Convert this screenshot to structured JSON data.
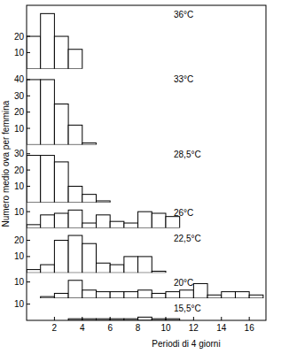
{
  "chart_data": [
    {
      "type": "histogram",
      "title": "36°C",
      "ylabel": "Numero medio ova per femmina",
      "color": "#ffffff",
      "bins": [
        0,
        1,
        2,
        3,
        4
      ],
      "values": [
        20,
        34,
        20,
        12
      ],
      "xlim": [
        0,
        17.2
      ],
      "ylim": [
        0,
        38
      ],
      "yticks": [
        10,
        20
      ]
    },
    {
      "type": "histogram",
      "title": "33°C",
      "color": "#ffffff",
      "bins": [
        0,
        1,
        2,
        3,
        4,
        5
      ],
      "values": [
        40,
        40,
        25,
        12,
        1
      ],
      "xlim": [
        0,
        17.2
      ],
      "ylim": [
        0,
        45
      ],
      "yticks": [
        10,
        20,
        30,
        40
      ]
    },
    {
      "type": "histogram",
      "title": "28,5°C",
      "color": "#ffffff",
      "bins": [
        0,
        1,
        2,
        3,
        4,
        5,
        6
      ],
      "values": [
        29,
        29,
        25,
        10,
        5,
        1
      ],
      "xlim": [
        0,
        17.2
      ],
      "ylim": [
        0,
        34
      ],
      "yticks": [
        10,
        20,
        30
      ]
    },
    {
      "type": "histogram",
      "title": "26°C",
      "color": "#ffffff",
      "bins": [
        0,
        1,
        2,
        3,
        4,
        5,
        6,
        7,
        8,
        9,
        10,
        11
      ],
      "values": [
        2,
        8,
        9,
        11,
        3,
        8,
        4,
        3,
        10,
        9,
        7
      ],
      "xlim": [
        0,
        17.2
      ],
      "ylim": [
        0,
        14
      ],
      "yticks": [
        10
      ]
    },
    {
      "type": "histogram",
      "title": "22,5°C",
      "color": "#ffffff",
      "bins": [
        0,
        1,
        2,
        3,
        4,
        5,
        6,
        7,
        8,
        9,
        10
      ],
      "values": [
        2,
        5,
        20,
        23,
        18,
        6,
        5,
        10,
        10,
        1
      ],
      "xlim": [
        0,
        17.2
      ],
      "ylim": [
        0,
        26
      ],
      "yticks": [
        10,
        20
      ]
    },
    {
      "type": "histogram",
      "title": "20°C",
      "color": "#ffffff",
      "bins": [
        1,
        2,
        3,
        4,
        5,
        6,
        7,
        8,
        9,
        10,
        11,
        12,
        13,
        14,
        15,
        16,
        17
      ],
      "values": [
        1,
        3,
        11,
        5,
        4,
        4,
        4,
        5,
        3,
        4,
        5,
        9,
        2,
        4,
        4,
        2
      ],
      "xlim": [
        0,
        17.2
      ],
      "ylim": [
        0,
        14
      ],
      "yticks": [
        10
      ]
    },
    {
      "type": "histogram",
      "title": "15,5°C",
      "xlabel": "Periodi di 4 giorni",
      "color": "#ffffff",
      "bins": [
        3,
        4,
        5,
        6,
        7,
        8,
        9,
        10,
        11
      ],
      "values": [
        1,
        1,
        1,
        1,
        1,
        2,
        1,
        1
      ],
      "xlim": [
        0,
        17.2
      ],
      "ylim": [
        0,
        12
      ],
      "yticks": [
        10
      ],
      "xticks": [
        2,
        4,
        6,
        8,
        10,
        12,
        14,
        16
      ]
    }
  ]
}
